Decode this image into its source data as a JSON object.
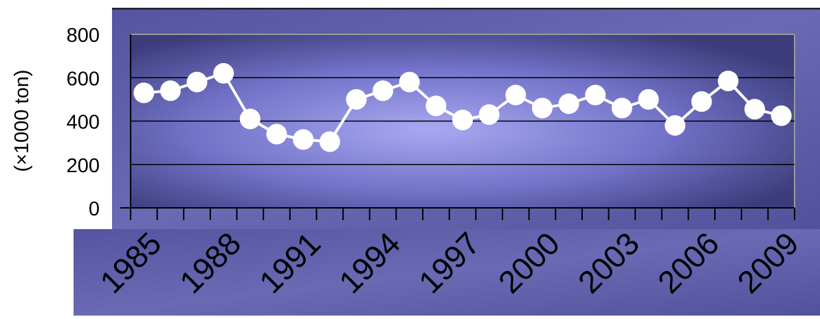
{
  "chart_data": {
    "type": "line",
    "title": "",
    "xlabel": "",
    "ylabel": "(×1000 ton)",
    "x": [
      1985,
      1986,
      1987,
      1988,
      1989,
      1990,
      1991,
      1992,
      1993,
      1994,
      1995,
      1996,
      1997,
      1998,
      1999,
      2000,
      2001,
      2002,
      2003,
      2004,
      2005,
      2006,
      2007,
      2008,
      2009
    ],
    "x_tick_labels": [
      "1985",
      "1988",
      "1991",
      "1994",
      "1997",
      "2000",
      "2003",
      "2006",
      "2009"
    ],
    "y_tick_labels": [
      "800",
      "600",
      "400",
      "200",
      "0"
    ],
    "series": [
      {
        "values": [
          530,
          540,
          580,
          620,
          410,
          340,
          315,
          305,
          500,
          540,
          580,
          470,
          405,
          430,
          520,
          460,
          480,
          520,
          460,
          500,
          380,
          490,
          585,
          455,
          425
        ]
      }
    ],
    "ylim": [
      0,
      800
    ],
    "grid": true,
    "legend": "none",
    "colors": {
      "outer_panel": "#5e5ea8",
      "plot_center": "#a8a8f2",
      "plot_edge": "#3c3c7a",
      "line": "#ffffff",
      "marker": "#ffffff",
      "gridline": "#000000"
    }
  }
}
